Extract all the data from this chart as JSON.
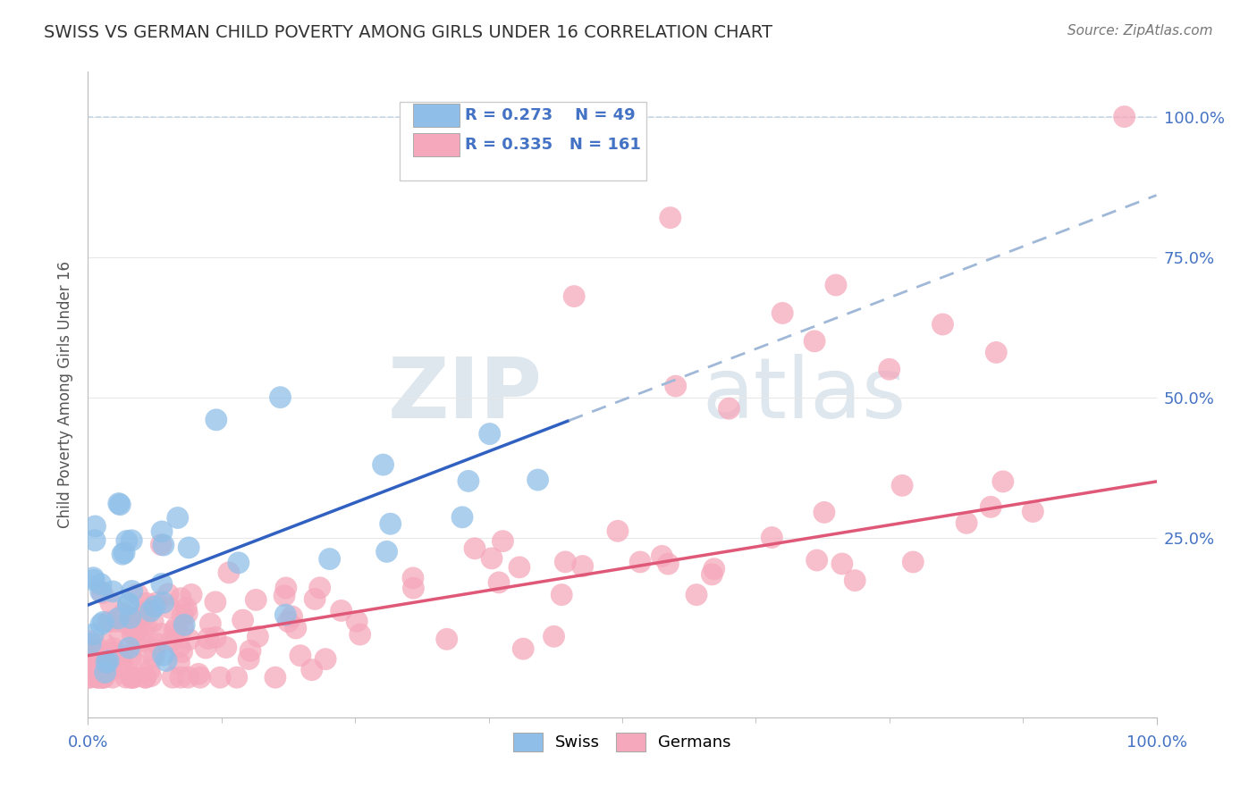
{
  "title": "SWISS VS GERMAN CHILD POVERTY AMONG GIRLS UNDER 16 CORRELATION CHART",
  "source": "Source: ZipAtlas.com",
  "ylabel": "Child Poverty Among Girls Under 16",
  "xlim": [
    0,
    1.0
  ],
  "ylim": [
    -0.07,
    1.08
  ],
  "ytick_positions": [
    0.25,
    0.5,
    0.75,
    1.0
  ],
  "ytick_labels": [
    "25.0%",
    "50.0%",
    "75.0%",
    "100.0%"
  ],
  "swiss_R": 0.273,
  "swiss_N": 49,
  "german_R": 0.335,
  "german_N": 161,
  "swiss_color": "#8fbfe8",
  "german_color": "#f5a8bb",
  "swiss_line_color": "#3060c0",
  "german_line_color": "#e05878",
  "dashed_line_color": "#a0b8d8",
  "legend_label_swiss": "Swiss",
  "legend_label_german": "Germans",
  "watermark_zip": "ZIP",
  "watermark_atlas": "atlas",
  "background_color": "#ffffff",
  "title_color": "#333333",
  "tick_label_color": "#4472c4",
  "axis_color": "#cccccc",
  "grid_color": "#e8e8e8"
}
